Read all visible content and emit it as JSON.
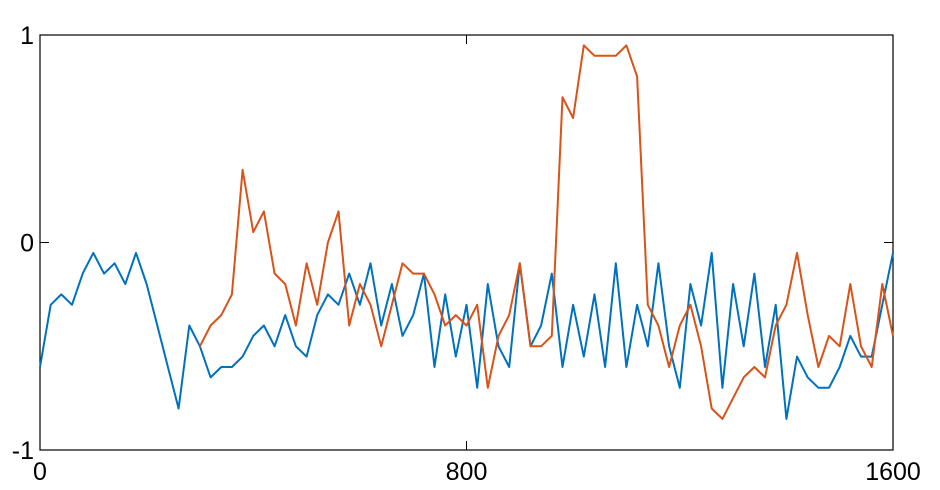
{
  "chart_data": {
    "type": "line",
    "x": [
      0,
      20,
      40,
      60,
      80,
      100,
      120,
      140,
      160,
      180,
      200,
      220,
      240,
      260,
      280,
      300,
      320,
      340,
      360,
      380,
      400,
      420,
      440,
      460,
      480,
      500,
      520,
      540,
      560,
      580,
      600,
      620,
      640,
      660,
      680,
      700,
      720,
      740,
      760,
      780,
      800,
      820,
      840,
      860,
      880,
      900,
      920,
      940,
      960,
      980,
      1000,
      1020,
      1040,
      1060,
      1080,
      1100,
      1120,
      1140,
      1160,
      1180,
      1200,
      1220,
      1240,
      1260,
      1280,
      1300,
      1320,
      1340,
      1360,
      1380,
      1400,
      1420,
      1440,
      1460,
      1480,
      1500,
      1520,
      1540,
      1560,
      1580,
      1600
    ],
    "series": [
      {
        "color": "#0072bd",
        "values": [
          -0.6,
          -0.3,
          -0.25,
          -0.3,
          -0.15,
          -0.05,
          -0.15,
          -0.1,
          -0.2,
          -0.05,
          -0.2,
          -0.4,
          -0.6,
          -0.8,
          -0.4,
          -0.5,
          -0.65,
          -0.6,
          -0.6,
          -0.55,
          -0.45,
          -0.4,
          -0.5,
          -0.35,
          -0.5,
          -0.55,
          -0.35,
          -0.25,
          -0.3,
          -0.15,
          -0.3,
          -0.1,
          -0.4,
          -0.2,
          -0.45,
          -0.35,
          -0.15,
          -0.6,
          -0.25,
          -0.55,
          -0.3,
          -0.7,
          -0.2,
          -0.5,
          -0.6,
          -0.1,
          -0.5,
          -0.4,
          -0.15,
          -0.6,
          -0.3,
          -0.55,
          -0.25,
          -0.6,
          -0.1,
          -0.6,
          -0.3,
          -0.5,
          -0.1,
          -0.5,
          -0.7,
          -0.2,
          -0.4,
          -0.05,
          -0.7,
          -0.2,
          -0.5,
          -0.15,
          -0.6,
          -0.3,
          -0.85,
          -0.55,
          -0.65,
          -0.7,
          -0.7,
          -0.6,
          -0.45,
          -0.55,
          -0.55,
          -0.3,
          -0.05
        ]
      },
      {
        "color": "#d95319",
        "values": [
          null,
          null,
          null,
          null,
          null,
          null,
          null,
          null,
          null,
          null,
          null,
          null,
          null,
          null,
          null,
          -0.5,
          -0.4,
          -0.35,
          -0.25,
          0.35,
          0.05,
          0.15,
          -0.15,
          -0.2,
          -0.4,
          -0.1,
          -0.3,
          0.0,
          0.15,
          -0.4,
          -0.2,
          -0.3,
          -0.5,
          -0.3,
          -0.1,
          -0.15,
          -0.15,
          -0.25,
          -0.4,
          -0.35,
          -0.4,
          -0.3,
          -0.7,
          -0.45,
          -0.35,
          -0.1,
          -0.5,
          -0.5,
          -0.45,
          0.7,
          0.6,
          0.95,
          0.9,
          0.9,
          0.9,
          0.95,
          0.8,
          -0.3,
          -0.4,
          -0.6,
          -0.4,
          -0.3,
          -0.5,
          -0.8,
          -0.85,
          -0.75,
          -0.65,
          -0.6,
          -0.65,
          -0.4,
          -0.3,
          -0.05,
          -0.35,
          -0.6,
          -0.45,
          -0.5,
          -0.2,
          -0.5,
          -0.6,
          -0.2,
          -0.45
        ]
      }
    ],
    "xlim": [
      0,
      1600
    ],
    "xticks": [
      0,
      800,
      1600
    ],
    "ylim": [
      -1,
      1
    ],
    "yticks": [
      -1,
      0,
      1
    ]
  }
}
